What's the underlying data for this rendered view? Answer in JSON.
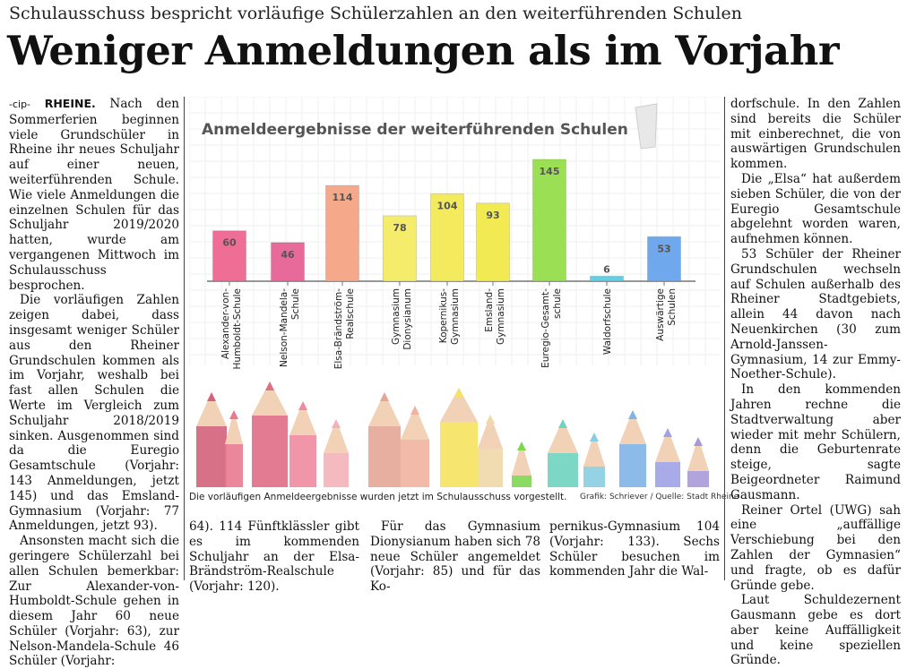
{
  "article": {
    "kicker": "Schulausschuss bespricht vorläufige Schülerzahlen an den weiterführenden Schulen",
    "headline": "Weniger Anmeldungen als im Vorjahr",
    "author_tag": "-cip-",
    "location": "RHEINE.",
    "col1": [
      " Nach den Sommerferien beginnen viele Grundschüler in Rheine ihr neues Schuljahr auf einer neuen, weiterführenden Schule. Wie viele Anmeldungen die einzelnen Schulen für das Schuljahr 2019/2020 hatten, wurde am vergangenen Mittwoch im Schulausschuss besprochen.",
      "Die vorläufigen Zahlen zeigen dabei, dass insgesamt weniger Schüler aus den Rheiner Grundschulen kommen als im Vorjahr, weshalb bei fast allen Schulen die Werte im Vergleich zum Schuljahr 2018/2019 sinken. Ausgenommen sind da die Euregio Gesamtschule (Vorjahr: 143 Anmeldungen, jetzt 145) und das Emsland-Gymnasium (Vorjahr: 77 Anmeldungen, jetzt 93).",
      "Ansonsten macht sich die geringere Schülerzahl bei allen Schulen bemerkbar: Zur Alexander-von-Humboldt-Schule gehen in diesem Jahr 60 neue Schüler (Vorjahr: 63), zur Nelson-Mandela-Schule 46 Schüler (Vorjahr:"
    ],
    "col2_bottom": "64). 114 Fünftklässler gibt es im kommenden Schuljahr an der Elsa-Brändström-Realschule (Vorjahr: 120).",
    "col3_bottom": "Für das Gymnasium Dionysianum haben sich 78 neue Schüler angemeldet (Vorjahr: 85) und für das Ko-",
    "col4_bottom": "pernikus-Gymnasium 104 (Vorjahr: 133). Sechs Schüler besuchen im kommenden Jahr die Wal-",
    "col5": [
      "dorfschule. In den Zahlen sind bereits die Schüler mit einberechnet, die von auswärtigen Grundschulen kommen.",
      "Die „Elsa“ hat außerdem sieben Schüler, die von der Euregio Gesamtschule abgelehnt worden waren, aufnehmen können.",
      "53 Schüler der Rheiner Grundschulen wechseln auf Schulen außerhalb des Rheiner Stadtgebiets, allein 44 davon nach Neuenkirchen (30 zum Arnold-Janssen-Gymnasium, 14 zur Emmy-Noether-Schule).",
      "In den kommenden Jahren rechne die Stadtverwaltung aber wieder mit mehr Schülern, denn die Geburtenrate steige, sagte Beigeordneter Raimund Gausmann.",
      "Reiner Ortel (UWG) sah eine „auffällige Verschiebung bei den Zahlen der Gymnasien“ und fragte, ob es dafür Gründe gebe.",
      "Laut Schuldezernent Gausmann gebe es dort aber keine Auffälligkeit und keine speziellen Gründe."
    ]
  },
  "graphic": {
    "caption": "Die vorläufigen Anmeldeergebnisse wurden jetzt im Schulausschuss vorgestellt.",
    "credit": "Grafik: Schriever / Quelle: Stadt Rheine"
  },
  "chart_data": {
    "type": "bar",
    "title": "Anmeldeergebnisse der weiterführenden Schulen",
    "categories": [
      [
        "Alexander-von-",
        "Humboldt-Schule"
      ],
      [
        "Nelson-Mandela-",
        "Schule"
      ],
      [
        "Elsa-Brändström-",
        "Realschule"
      ],
      [
        "Gymnasium",
        "Dionysianum"
      ],
      [
        "Kopernikus-",
        "Gymnasium"
      ],
      [
        "Emsland-",
        "Gymnasium"
      ],
      [
        "Euregio-Gesamt-",
        "schule"
      ],
      [
        "Waldorfschule"
      ],
      [
        "Auswärtige",
        "Schulen"
      ]
    ],
    "values": [
      60,
      46,
      114,
      78,
      104,
      93,
      145,
      6,
      53
    ],
    "colors": [
      "#ee6e95",
      "#e86a9a",
      "#f6a98a",
      "#f4ec6a",
      "#f3ea5e",
      "#f1ea52",
      "#9bdf55",
      "#62cfe6",
      "#6fa8ec"
    ],
    "ylim": [
      0,
      145
    ],
    "xlabel": "",
    "ylabel": ""
  }
}
